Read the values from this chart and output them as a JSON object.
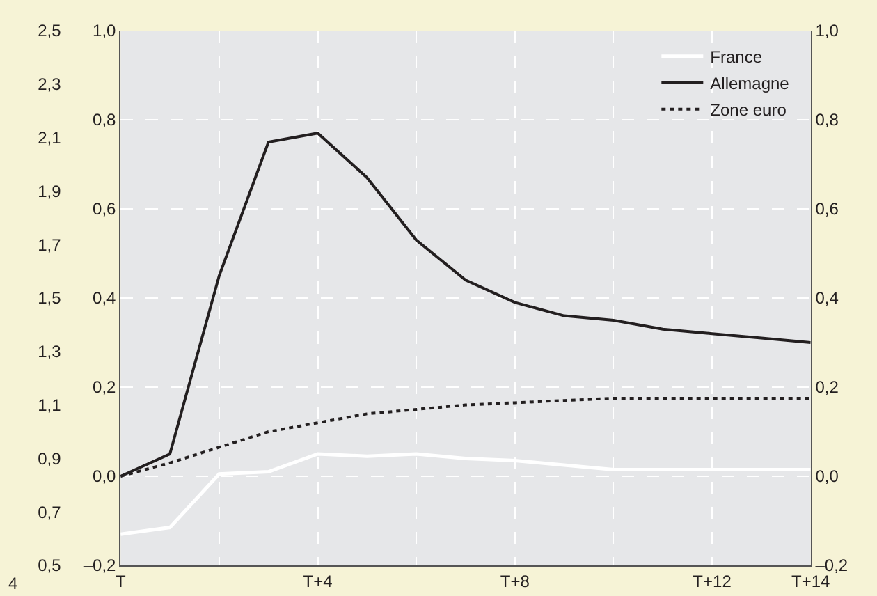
{
  "chart_data": {
    "type": "line",
    "categories": [
      "T",
      null,
      null,
      null,
      "T+4",
      null,
      null,
      null,
      "T+8",
      null,
      null,
      null,
      "T+12",
      null,
      "T+14"
    ],
    "series": [
      {
        "name": "France",
        "color": "#ffffff",
        "values": [
          -0.13,
          -0.115,
          0.005,
          0.01,
          0.05,
          0.045,
          0.05,
          0.04,
          0.035,
          0.025,
          0.015,
          0.015,
          0.015,
          0.015,
          0.015
        ]
      },
      {
        "name": "Allemagne",
        "color": "#231f20",
        "values": [
          0.0,
          0.05,
          0.45,
          0.75,
          0.77,
          0.67,
          0.53,
          0.44,
          0.39,
          0.36,
          0.35,
          0.33,
          0.32,
          0.31,
          0.3
        ]
      },
      {
        "name": "Zone euro",
        "color": "#231f20",
        "line_style": "dotted",
        "values": [
          0.0,
          0.03,
          0.065,
          0.1,
          0.12,
          0.14,
          0.15,
          0.16,
          0.165,
          0.17,
          0.175,
          0.175,
          0.175,
          0.175,
          0.175
        ]
      }
    ],
    "ylim": [
      -0.2,
      1.0
    ],
    "yticks": [
      {
        "value": -0.2,
        "label": "–0,2"
      },
      {
        "value": 0,
        "label": "0,0"
      },
      {
        "value": 0.2,
        "label": "0,2"
      },
      {
        "value": 0.4,
        "label": "0,4"
      },
      {
        "value": 0.6,
        "label": "0,6"
      },
      {
        "value": 0.8,
        "label": "0,8"
      },
      {
        "value": 1.0,
        "label": "1,0"
      }
    ],
    "y2lim": [
      -0.2,
      1.0
    ],
    "y2ticks": [
      {
        "value": -0.2,
        "label": "–0,2"
      },
      {
        "value": 0,
        "label": "0,0"
      },
      {
        "value": 0.2,
        "label": "0,2"
      },
      {
        "value": 0.4,
        "label": "0,4"
      },
      {
        "value": 0.6,
        "label": "0,6"
      },
      {
        "value": 0.8,
        "label": "0,8"
      },
      {
        "value": 1.0,
        "label": "1,0"
      }
    ],
    "y3lim": [
      0.5,
      2.5
    ],
    "y3ticks": [
      {
        "value": 0.5,
        "label": "0,5"
      },
      {
        "value": 0.7,
        "label": "0,7"
      },
      {
        "value": 0.9,
        "label": "0,9"
      },
      {
        "value": 1.1,
        "label": "1,1"
      },
      {
        "value": 1.3,
        "label": "1,3"
      },
      {
        "value": 1.5,
        "label": "1,5"
      },
      {
        "value": 1.7,
        "label": "1,7"
      },
      {
        "value": 1.9,
        "label": "1,9"
      },
      {
        "value": 2.1,
        "label": "2,1"
      },
      {
        "value": 2.3,
        "label": "2,3"
      },
      {
        "value": 2.5,
        "label": "2,5"
      }
    ],
    "annotations": [
      "4"
    ],
    "grid": true,
    "legend": "top right",
    "marker": "none",
    "line_style": "solid"
  }
}
